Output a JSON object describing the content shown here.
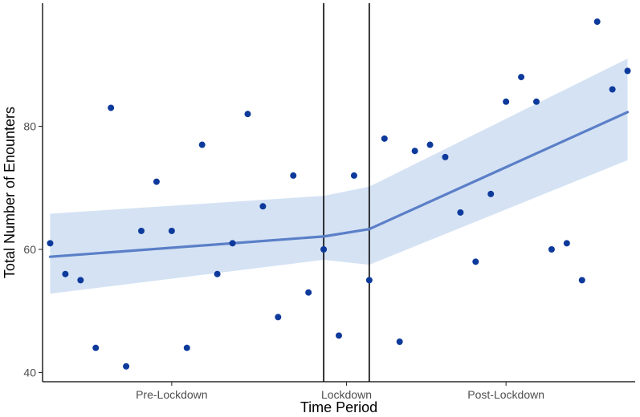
{
  "chart_data": {
    "type": "scatter",
    "title": "",
    "xlabel": "Time Period",
    "ylabel": "Total Number of Enounters",
    "xlim": [
      0.5,
      39.5
    ],
    "ylim": [
      38.5,
      100
    ],
    "y_ticks": [
      40,
      60,
      80
    ],
    "x_tick_labels": [
      {
        "label": "Pre-Lockdown",
        "x": 9
      },
      {
        "label": "Lockdown",
        "x": 20.5
      },
      {
        "label": "Post-Lockdown",
        "x": 31
      }
    ],
    "vertical_lines": [
      19,
      22
    ],
    "points": [
      {
        "x": 1,
        "y": 61
      },
      {
        "x": 2,
        "y": 56
      },
      {
        "x": 3,
        "y": 55
      },
      {
        "x": 4,
        "y": 44
      },
      {
        "x": 5,
        "y": 83
      },
      {
        "x": 6,
        "y": 41
      },
      {
        "x": 7,
        "y": 63
      },
      {
        "x": 8,
        "y": 71
      },
      {
        "x": 9,
        "y": 63
      },
      {
        "x": 10,
        "y": 44
      },
      {
        "x": 11,
        "y": 77
      },
      {
        "x": 12,
        "y": 56
      },
      {
        "x": 13,
        "y": 61
      },
      {
        "x": 14,
        "y": 82
      },
      {
        "x": 15,
        "y": 67
      },
      {
        "x": 16,
        "y": 49
      },
      {
        "x": 17,
        "y": 72
      },
      {
        "x": 18,
        "y": 53
      },
      {
        "x": 19,
        "y": 60
      },
      {
        "x": 20,
        "y": 46
      },
      {
        "x": 21,
        "y": 72
      },
      {
        "x": 22,
        "y": 55
      },
      {
        "x": 23,
        "y": 78
      },
      {
        "x": 24,
        "y": 45
      },
      {
        "x": 25,
        "y": 76
      },
      {
        "x": 26,
        "y": 77
      },
      {
        "x": 27,
        "y": 75
      },
      {
        "x": 28,
        "y": 66
      },
      {
        "x": 29,
        "y": 58
      },
      {
        "x": 30,
        "y": 69
      },
      {
        "x": 31,
        "y": 84
      },
      {
        "x": 32,
        "y": 88
      },
      {
        "x": 33,
        "y": 84
      },
      {
        "x": 34,
        "y": 60
      },
      {
        "x": 35,
        "y": 61
      },
      {
        "x": 36,
        "y": 55
      },
      {
        "x": 37,
        "y": 97
      },
      {
        "x": 38,
        "y": 86
      },
      {
        "x": 39,
        "y": 89
      }
    ],
    "trend": {
      "segments": [
        {
          "x": [
            1,
            19
          ],
          "y": [
            58.8,
            62.1
          ],
          "lower": [
            52.8,
            58.3
          ],
          "upper": [
            65.8,
            68.7
          ]
        },
        {
          "x": [
            19,
            22
          ],
          "y": [
            62.1,
            63.3
          ],
          "lower": [
            58.3,
            57.5
          ],
          "upper": [
            68.7,
            70.2
          ]
        },
        {
          "x": [
            22,
            39
          ],
          "y": [
            63.3,
            82.3
          ],
          "lower": [
            57.5,
            74.5
          ],
          "upper": [
            70.2,
            91.0
          ]
        }
      ]
    },
    "colors": {
      "points": "#0d3a9b",
      "trend_line": "#5b7fc7",
      "ribbon": "#d4e2f4",
      "axis": "#000000",
      "vline": "#000000",
      "tick_text": "#4d4d4d"
    }
  }
}
